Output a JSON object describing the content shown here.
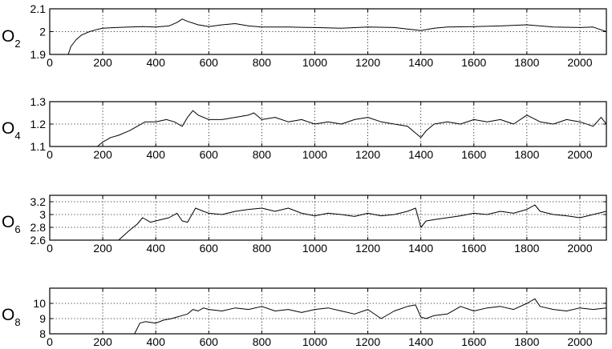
{
  "chart_data": [
    {
      "type": "line",
      "ylabel": "O",
      "ylabel_sub": "2",
      "xlim": [
        0,
        2100
      ],
      "ylim": [
        1.9,
        2.1
      ],
      "xticks": [
        0,
        200,
        400,
        600,
        800,
        1000,
        1200,
        1400,
        1600,
        1800,
        2000
      ],
      "xticklabels": [
        "0",
        "200",
        "400",
        "600",
        "800",
        "1000",
        "1200",
        "1400",
        "1600",
        "1800",
        "2000"
      ],
      "yticks": [
        1.9,
        2,
        2.1
      ],
      "yticklabels": [
        "1.9",
        "2",
        "2.1"
      ],
      "grid": true,
      "series": [
        {
          "x": [
            70,
            80,
            100,
            120,
            150,
            180,
            200,
            250,
            300,
            350,
            400,
            450,
            480,
            500,
            520,
            560,
            600,
            650,
            700,
            750,
            800,
            900,
            1000,
            1100,
            1200,
            1300,
            1400,
            1450,
            1500,
            1600,
            1700,
            1800,
            1900,
            2000,
            2050,
            2100
          ],
          "y": [
            1.9,
            1.935,
            1.965,
            1.985,
            2.0,
            2.01,
            2.015,
            2.018,
            2.02,
            2.022,
            2.02,
            2.025,
            2.04,
            2.055,
            2.045,
            2.03,
            2.022,
            2.03,
            2.035,
            2.025,
            2.02,
            2.02,
            2.018,
            2.015,
            2.02,
            2.018,
            2.005,
            2.015,
            2.02,
            2.022,
            2.025,
            2.03,
            2.02,
            2.018,
            2.02,
            2.0
          ]
        }
      ]
    },
    {
      "type": "line",
      "ylabel": "O",
      "ylabel_sub": "4",
      "xlim": [
        0,
        2100
      ],
      "ylim": [
        1.1,
        1.3
      ],
      "xticks": [
        0,
        200,
        400,
        600,
        800,
        1000,
        1200,
        1400,
        1600,
        1800,
        2000
      ],
      "xticklabels": [
        "0",
        "200",
        "400",
        "600",
        "800",
        "1000",
        "1200",
        "1400",
        "1600",
        "1800",
        "2000"
      ],
      "yticks": [
        1.1,
        1.2,
        1.3
      ],
      "yticklabels": [
        "1.1",
        "1.2",
        "1.3"
      ],
      "grid": true,
      "series": [
        {
          "x": [
            180,
            200,
            230,
            260,
            300,
            330,
            360,
            400,
            440,
            470,
            500,
            520,
            540,
            560,
            600,
            650,
            700,
            750,
            770,
            800,
            850,
            900,
            950,
            1000,
            1050,
            1100,
            1150,
            1200,
            1250,
            1300,
            1350,
            1380,
            1400,
            1420,
            1450,
            1500,
            1550,
            1600,
            1650,
            1700,
            1750,
            1800,
            1850,
            1900,
            1950,
            2000,
            2050,
            2080,
            2100
          ],
          "y": [
            1.1,
            1.12,
            1.14,
            1.15,
            1.17,
            1.19,
            1.21,
            1.21,
            1.22,
            1.21,
            1.19,
            1.23,
            1.26,
            1.24,
            1.22,
            1.22,
            1.23,
            1.24,
            1.25,
            1.22,
            1.23,
            1.21,
            1.22,
            1.2,
            1.21,
            1.2,
            1.22,
            1.23,
            1.21,
            1.2,
            1.19,
            1.16,
            1.14,
            1.17,
            1.2,
            1.21,
            1.2,
            1.22,
            1.21,
            1.22,
            1.2,
            1.24,
            1.21,
            1.2,
            1.22,
            1.21,
            1.19,
            1.23,
            1.2
          ]
        }
      ]
    },
    {
      "type": "line",
      "ylabel": "O",
      "ylabel_sub": "6",
      "xlim": [
        0,
        2100
      ],
      "ylim": [
        2.6,
        3.3
      ],
      "xticks": [
        0,
        200,
        400,
        600,
        800,
        1000,
        1200,
        1400,
        1600,
        1800,
        2000
      ],
      "xticklabels": [
        "0",
        "200",
        "400",
        "600",
        "800",
        "1000",
        "1200",
        "1400",
        "1600",
        "1800",
        "2000"
      ],
      "yticks": [
        2.6,
        2.8,
        3,
        3.2
      ],
      "yticklabels": [
        "2.6",
        "2.8",
        "3",
        "3.2"
      ],
      "grid": true,
      "series": [
        {
          "x": [
            260,
            300,
            330,
            350,
            380,
            400,
            420,
            450,
            480,
            500,
            520,
            550,
            580,
            600,
            650,
            700,
            750,
            800,
            850,
            900,
            950,
            1000,
            1050,
            1100,
            1150,
            1200,
            1250,
            1300,
            1350,
            1380,
            1400,
            1420,
            1450,
            1500,
            1550,
            1600,
            1650,
            1700,
            1750,
            1800,
            1830,
            1850,
            1900,
            1950,
            2000,
            2050,
            2100
          ],
          "y": [
            2.6,
            2.75,
            2.85,
            2.95,
            2.88,
            2.9,
            2.92,
            2.95,
            3.02,
            2.9,
            2.88,
            3.1,
            3.05,
            3.02,
            3.0,
            3.05,
            3.08,
            3.1,
            3.05,
            3.1,
            3.02,
            2.98,
            3.02,
            3.0,
            2.97,
            3.02,
            2.98,
            3.0,
            3.05,
            3.1,
            2.8,
            2.9,
            2.92,
            2.95,
            2.98,
            3.02,
            3.0,
            3.05,
            3.02,
            3.08,
            3.15,
            3.05,
            3.0,
            2.98,
            2.95,
            3.0,
            3.05
          ]
        }
      ]
    },
    {
      "type": "line",
      "ylabel": "O",
      "ylabel_sub": "8",
      "xlim": [
        0,
        2100
      ],
      "ylim": [
        8,
        11
      ],
      "xticks": [
        0,
        200,
        400,
        600,
        800,
        1000,
        1200,
        1400,
        1600,
        1800,
        2000
      ],
      "xticklabels": [
        "0",
        "200",
        "400",
        "600",
        "800",
        "1000",
        "1200",
        "1400",
        "1600",
        "1800",
        "2000"
      ],
      "yticks": [
        8,
        9,
        10
      ],
      "yticklabels": [
        "8",
        "9",
        "10"
      ],
      "grid": true,
      "series": [
        {
          "x": [
            320,
            340,
            360,
            400,
            430,
            460,
            500,
            520,
            540,
            560,
            580,
            600,
            650,
            700,
            750,
            800,
            850,
            900,
            950,
            1000,
            1050,
            1100,
            1150,
            1200,
            1250,
            1300,
            1350,
            1380,
            1400,
            1420,
            1450,
            1500,
            1550,
            1600,
            1650,
            1700,
            1750,
            1800,
            1830,
            1850,
            1900,
            1950,
            2000,
            2050,
            2100
          ],
          "y": [
            8.0,
            8.7,
            8.8,
            8.7,
            8.9,
            9.0,
            9.2,
            9.3,
            9.6,
            9.5,
            9.7,
            9.6,
            9.5,
            9.7,
            9.6,
            9.8,
            9.5,
            9.6,
            9.4,
            9.6,
            9.7,
            9.5,
            9.3,
            9.6,
            9.0,
            9.5,
            9.8,
            9.9,
            9.1,
            9.0,
            9.2,
            9.3,
            9.8,
            9.5,
            9.7,
            9.8,
            9.6,
            10.0,
            10.3,
            9.8,
            9.6,
            9.5,
            9.7,
            9.6,
            9.7
          ]
        }
      ]
    }
  ]
}
